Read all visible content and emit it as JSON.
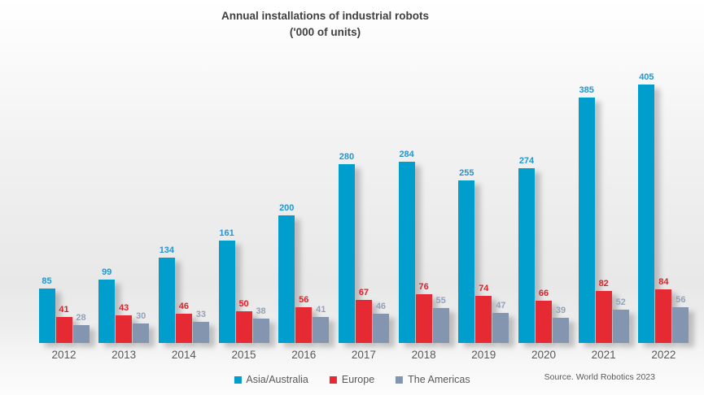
{
  "title": {
    "line1": "Annual installations of industrial robots",
    "line2": "('000 of units)"
  },
  "source": "Source. World Robotics 2023",
  "chart_data": {
    "type": "bar",
    "title": "Annual installations of industrial robots ('000 of units)",
    "xlabel": "",
    "ylabel": "",
    "grid": false,
    "legend_position": "bottom",
    "ylim": [
      0,
      405
    ],
    "categories": [
      "2012",
      "2013",
      "2014",
      "2015",
      "2016",
      "2017",
      "2018",
      "2019",
      "2020",
      "2021",
      "2022"
    ],
    "series": [
      {
        "name": "Asia/Australia",
        "color": "#009ECD",
        "label_color": "#2496CE",
        "values": [
          85,
          99,
          134,
          161,
          200,
          280,
          284,
          255,
          274,
          385,
          405
        ]
      },
      {
        "name": "Europe",
        "color": "#E52A33",
        "label_color": "#E21E26",
        "values": [
          41,
          43,
          46,
          50,
          56,
          67,
          76,
          74,
          66,
          82,
          84
        ]
      },
      {
        "name": "The Americas",
        "color": "#8496AF",
        "label_color": "#93A2B9",
        "values": [
          28,
          30,
          33,
          38,
          41,
          46,
          55,
          47,
          39,
          52,
          56
        ]
      }
    ]
  }
}
